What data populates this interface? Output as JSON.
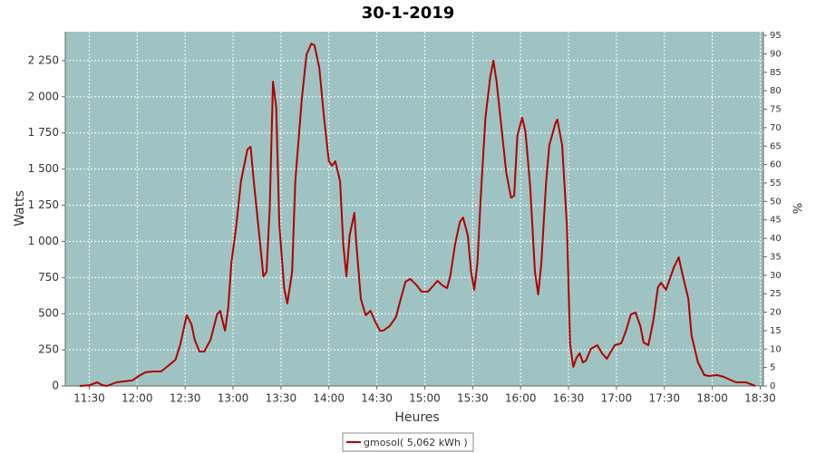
{
  "chart_data": {
    "type": "line",
    "title": "30-1-2019",
    "x_label": "Heures",
    "y_label": "Watts",
    "y2_label": "%",
    "x": [
      "11:24",
      "11:30",
      "11:35",
      "11:38",
      "11:41",
      "11:47",
      "11:51",
      "11:57",
      "12:01",
      "12:05",
      "12:10",
      "12:15",
      "12:20",
      "12:24",
      "12:27",
      "12:31",
      "12:34",
      "12:36",
      "12:39",
      "12:42",
      "12:46",
      "12:50",
      "12:52",
      "12:54",
      "12:55",
      "12:57",
      "12:59",
      "13:02",
      "13:05",
      "13:09",
      "13:11",
      "13:13",
      "13:17",
      "13:19",
      "13:21",
      "13:23",
      "13:25",
      "13:27",
      "13:29",
      "13:32",
      "13:34",
      "13:37",
      "13:39",
      "13:43",
      "13:46",
      "13:49",
      "13:51",
      "13:54",
      "13:57",
      "14:00",
      "14:02",
      "14:04",
      "14:07",
      "14:09",
      "14:11",
      "14:13",
      "14:16",
      "14:17",
      "14:20",
      "14:23",
      "14:26",
      "14:29",
      "14:32",
      "14:34",
      "14:38",
      "14:42",
      "14:45",
      "14:48",
      "14:51",
      "14:55",
      "14:58",
      "15:02",
      "15:05",
      "15:08",
      "15:11",
      "15:14",
      "15:16",
      "15:19",
      "15:22",
      "15:24",
      "15:27",
      "15:29",
      "15:31",
      "15:33",
      "15:35",
      "15:38",
      "15:41",
      "15:43",
      "15:45",
      "15:48",
      "15:51",
      "15:54",
      "15:56",
      "15:58",
      "16:01",
      "16:03",
      "16:06",
      "16:09",
      "16:11",
      "16:13",
      "16:16",
      "16:18",
      "16:22",
      "16:23",
      "16:26",
      "16:29",
      "16:31",
      "16:33",
      "16:35",
      "16:37",
      "16:39",
      "16:41",
      "16:44",
      "16:48",
      "16:51",
      "16:54",
      "16:56",
      "16:59",
      "17:03",
      "17:06",
      "17:09",
      "17:12",
      "17:15",
      "17:17",
      "17:20",
      "17:23",
      "17:26",
      "17:28",
      "17:31",
      "17:33",
      "17:36",
      "17:39",
      "17:41",
      "17:45",
      "17:47",
      "17:51",
      "17:55",
      "17:58",
      "18:03",
      "18:07",
      "18:12",
      "18:15",
      "18:21",
      "18:24",
      "18:27"
    ],
    "series": [
      {
        "name": "gmosol( 5,062 kWh )",
        "color": "#b00000",
        "values": [
          0,
          5,
          25,
          6,
          0,
          25,
          31,
          38,
          69,
          94,
          100,
          100,
          144,
          182,
          288,
          489,
          426,
          320,
          238,
          238,
          320,
          495,
          520,
          426,
          382,
          539,
          852,
          1103,
          1416,
          1636,
          1654,
          1416,
          978,
          758,
          789,
          1234,
          2105,
          1930,
          1115,
          677,
          570,
          789,
          1416,
          1980,
          2293,
          2368,
          2356,
          2199,
          1855,
          1554,
          1523,
          1554,
          1416,
          978,
          758,
          1040,
          1197,
          1009,
          602,
          489,
          520,
          445,
          382,
          382,
          414,
          476,
          602,
          721,
          740,
          696,
          652,
          652,
          689,
          727,
          696,
          677,
          758,
          978,
          1134,
          1165,
          1040,
          789,
          664,
          852,
          1291,
          1855,
          2137,
          2250,
          2105,
          1792,
          1479,
          1303,
          1316,
          1730,
          1855,
          1761,
          1385,
          789,
          633,
          852,
          1416,
          1667,
          1823,
          1842,
          1667,
          1103,
          288,
          132,
          194,
          226,
          163,
          176,
          257,
          282,
          226,
          188,
          226,
          282,
          295,
          382,
          495,
          508,
          414,
          301,
          282,
          445,
          683,
          714,
          664,
          727,
          821,
          890,
          789,
          602,
          351,
          163,
          75,
          69,
          75,
          63,
          38,
          25,
          25,
          13,
          0
        ]
      }
    ],
    "xlim": [
      "11:15",
      "18:32"
    ],
    "xticks": [
      "11:30",
      "12:00",
      "12:30",
      "13:00",
      "13:30",
      "14:00",
      "14:30",
      "15:00",
      "15:30",
      "16:00",
      "16:30",
      "17:00",
      "17:30",
      "18:00",
      "18:30"
    ],
    "ylim": [
      0,
      2450
    ],
    "yticks": [
      0,
      250,
      500,
      750,
      {
        "value": 1000,
        "label": "1 000"
      },
      {
        "value": 1250,
        "label": "1 250"
      },
      {
        "value": 1500,
        "label": "1 500"
      },
      {
        "value": 1750,
        "label": "1 750"
      },
      {
        "value": 2000,
        "label": "2 000"
      },
      {
        "value": 2250,
        "label": "2 250"
      }
    ],
    "y2lim": [
      0,
      96
    ],
    "y2ticks": [
      0,
      5,
      10,
      15,
      20,
      25,
      30,
      35,
      40,
      45,
      50,
      55,
      60,
      65,
      70,
      75,
      80,
      85,
      90,
      95
    ],
    "grid": true,
    "background": "#9fc3c3"
  }
}
